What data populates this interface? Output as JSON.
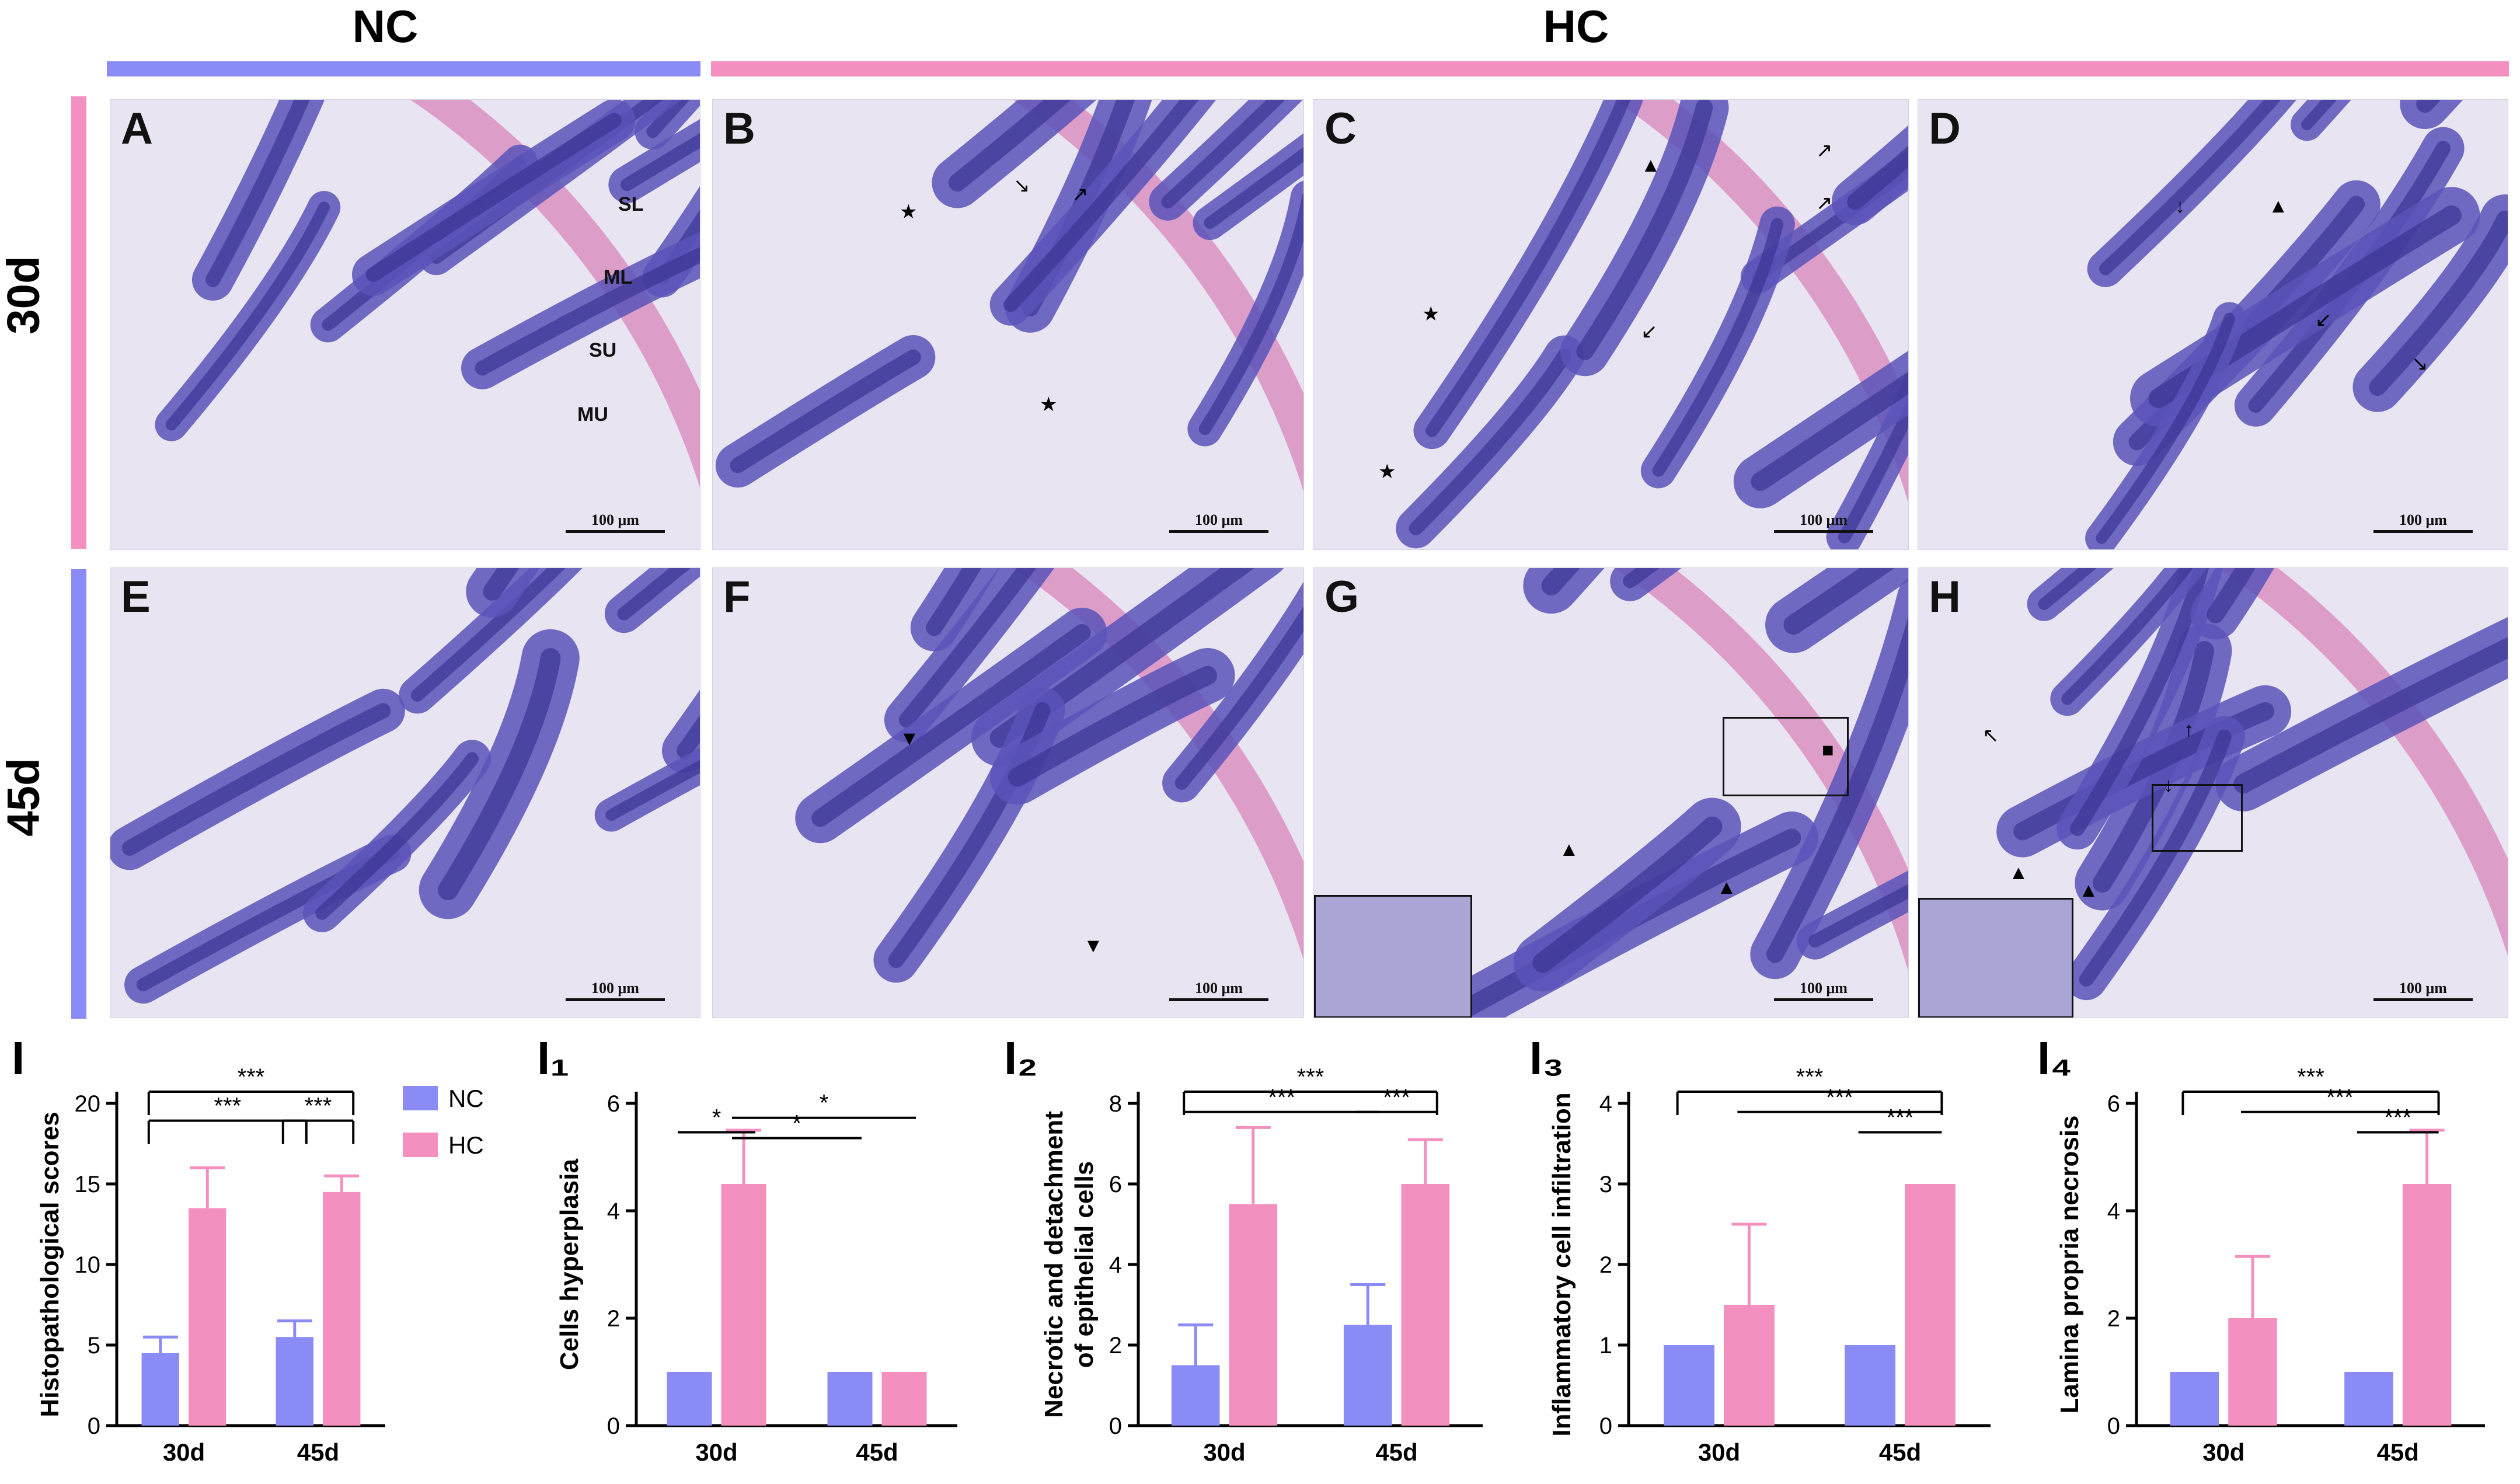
{
  "figure": {
    "group_labels": {
      "nc": "NC",
      "hc": "HC"
    },
    "row_labels": {
      "r1": "30d",
      "r2": "45d"
    },
    "colors": {
      "nc": "#8b8bf5",
      "hc": "#f490c0",
      "tissue_bg": "#e9e4f1",
      "tissue": "#5a54b8",
      "tissue_dark": "#3a3494",
      "pink": "#d98bbf"
    },
    "scale_text": "100 μm",
    "panels": [
      {
        "letter": "A"
      },
      {
        "letter": "B"
      },
      {
        "letter": "C"
      },
      {
        "letter": "D"
      },
      {
        "letter": "E"
      },
      {
        "letter": "F"
      },
      {
        "letter": "G"
      },
      {
        "letter": "H"
      }
    ],
    "tissue_labels": {
      "sl": "SL",
      "ml": "ML",
      "su": "SU",
      "mu": "MU"
    }
  },
  "chart_data": [
    {
      "type": "bar",
      "panel_label": "I",
      "categories": [
        "30d",
        "45d"
      ],
      "series": [
        {
          "name": "NC",
          "values": [
            4.5,
            5.5
          ],
          "errors": [
            1.0,
            1.0
          ]
        },
        {
          "name": "HC",
          "values": [
            13.5,
            14.5
          ],
          "errors": [
            2.5,
            1.0
          ]
        }
      ],
      "ylabel": "Histopathological scores",
      "ylim": [
        0,
        20
      ],
      "yticks": [
        0,
        5,
        10,
        15,
        20
      ],
      "legend": [
        "NC",
        "HC"
      ],
      "significance": [
        "***",
        "***",
        "***"
      ]
    },
    {
      "type": "bar",
      "panel_label": "I₁",
      "categories": [
        "30d",
        "45d"
      ],
      "series": [
        {
          "name": "NC",
          "values": [
            1.0,
            1.0
          ],
          "errors": [
            0,
            0
          ]
        },
        {
          "name": "HC",
          "values": [
            4.5,
            1.0
          ],
          "errors": [
            1.0,
            0
          ]
        }
      ],
      "ylabel": "Cells hyperplasia",
      "ylim": [
        0,
        6
      ],
      "yticks": [
        0,
        2,
        4,
        6
      ],
      "significance": [
        "*",
        "*",
        "*"
      ]
    },
    {
      "type": "bar",
      "panel_label": "I₂",
      "categories": [
        "30d",
        "45d"
      ],
      "series": [
        {
          "name": "NC",
          "values": [
            1.5,
            2.5
          ],
          "errors": [
            1.0,
            1.0
          ]
        },
        {
          "name": "HC",
          "values": [
            5.5,
            6.0
          ],
          "errors": [
            1.9,
            1.1
          ]
        }
      ],
      "ylabel": "Necrotic and detachment\nof epithelial cells",
      "ylabel_lines": [
        "Necrotic and detachment",
        "of epithelial cells"
      ],
      "ylim": [
        0,
        8
      ],
      "yticks": [
        0,
        2,
        4,
        6,
        8
      ],
      "significance": [
        "***",
        "***",
        "***"
      ]
    },
    {
      "type": "bar",
      "panel_label": "I₃",
      "categories": [
        "30d",
        "45d"
      ],
      "series": [
        {
          "name": "NC",
          "values": [
            1.0,
            1.0
          ],
          "errors": [
            0,
            0
          ]
        },
        {
          "name": "HC",
          "values": [
            1.5,
            3.0
          ],
          "errors": [
            1.0,
            0
          ]
        }
      ],
      "ylabel": "Inflammatory cell infiltration",
      "ylim": [
        0,
        4
      ],
      "yticks": [
        0,
        1,
        2,
        3,
        4
      ],
      "significance": [
        "***",
        "***",
        "***"
      ]
    },
    {
      "type": "bar",
      "panel_label": "I₄",
      "categories": [
        "30d",
        "45d"
      ],
      "series": [
        {
          "name": "NC",
          "values": [
            1.0,
            1.0
          ],
          "errors": [
            0,
            0
          ]
        },
        {
          "name": "HC",
          "values": [
            2.0,
            4.5
          ],
          "errors": [
            1.15,
            1.0
          ]
        }
      ],
      "ylabel": "Lamina propria necrosis",
      "ylim": [
        0,
        6
      ],
      "yticks": [
        0,
        2,
        4,
        6
      ],
      "significance": [
        "***",
        "***",
        "***"
      ]
    }
  ]
}
